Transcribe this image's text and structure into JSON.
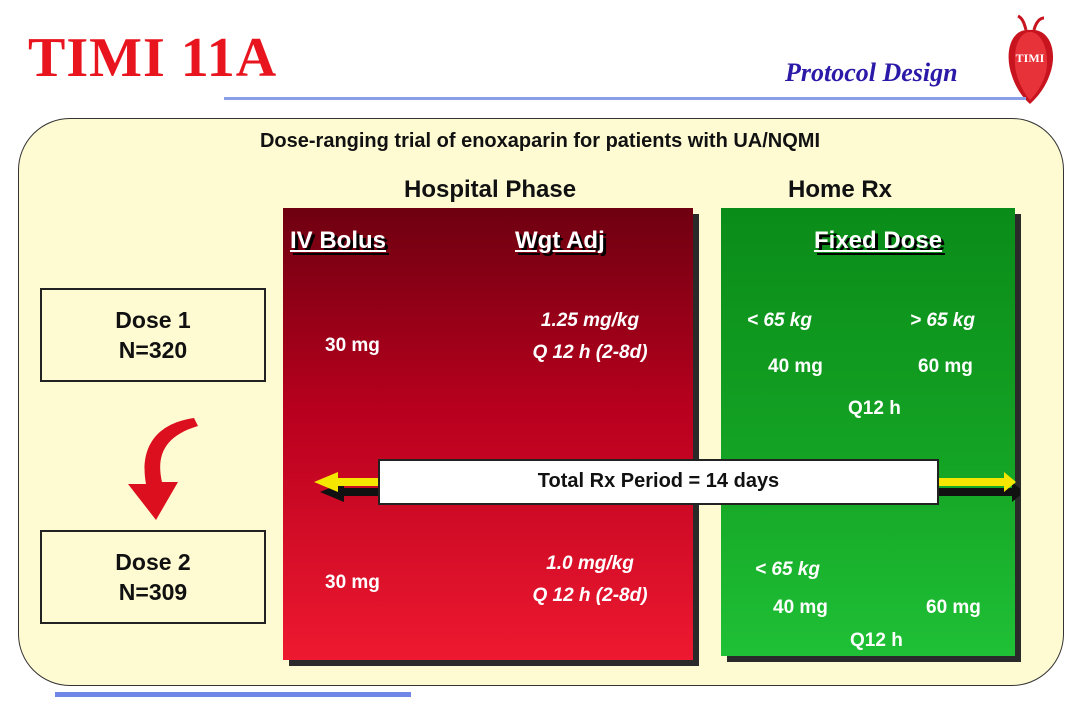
{
  "header": {
    "title": "TIMI 11A",
    "subtitle": "Protocol Design",
    "logo_text": "TIMI"
  },
  "heading": "Dose-ranging trial of enoxaparin for patients with UA/NQMI",
  "phases": {
    "hospital": "Hospital Phase",
    "home": "Home Rx"
  },
  "columns": {
    "iv_bolus": "IV Bolus",
    "wgt_adj": "Wgt Adj",
    "fixed_dose": "Fixed Dose"
  },
  "dose1": {
    "name": "Dose 1",
    "n": "N=320",
    "iv": "30 mg",
    "wgt_line1": "1.25  mg/kg",
    "wgt_line2": "Q 12 h (2-8d)",
    "weight_low": "< 65 kg",
    "weight_high": "> 65 kg",
    "fixed_low": "40 mg",
    "fixed_high": "60 mg",
    "freq": "Q12 h"
  },
  "dose2": {
    "name": "Dose 2",
    "n": "N=309",
    "iv": "30 mg",
    "wgt_line1": "1.0 mg/kg",
    "wgt_line2": "Q 12 h (2-8d)",
    "weight_low": "< 65 kg",
    "fixed_low": "40 mg",
    "fixed_high": "60 mg",
    "freq": "Q12 h"
  },
  "total_period": "Total Rx Period = 14 days",
  "colors": {
    "title": "#e8141e",
    "subtitle": "#2b1aa8",
    "panel": "#fefbd3",
    "hospital": "#b8001e",
    "home": "#14a324",
    "arrow": "#f5e600"
  }
}
